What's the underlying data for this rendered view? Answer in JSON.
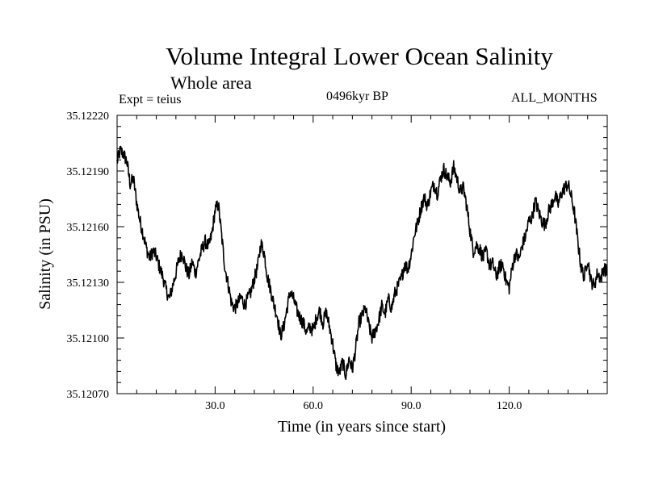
{
  "chart_data": {
    "type": "line",
    "title": "Volume Integral Lower Ocean Salinity",
    "subtitle": "Whole area",
    "annotations": {
      "left": "Expt = teius",
      "center": "0496kyr BP",
      "right": "ALL_MONTHS"
    },
    "xlabel": "Time (in years since start)",
    "ylabel": "Salinity (in PSU)",
    "xlim": [
      0,
      150
    ],
    "ylim": [
      35.1207,
      35.1222
    ],
    "xticks": [
      30,
      60,
      90,
      120
    ],
    "xtick_labels": [
      "30.0",
      "60.0",
      "90.0",
      "120.0"
    ],
    "yticks": [
      35.1207,
      35.121,
      35.1213,
      35.1216,
      35.1219,
      35.1222
    ],
    "ytick_labels": [
      "35.12070",
      "35.12100",
      "35.12130",
      "35.12160",
      "35.12190",
      "35.12220"
    ],
    "series": [
      {
        "name": "salinity",
        "x": [
          0,
          1,
          2,
          3,
          4,
          5,
          6,
          7,
          8,
          9,
          10,
          11,
          12,
          13,
          14,
          15,
          16,
          17,
          18,
          19,
          20,
          21,
          22,
          23,
          24,
          25,
          26,
          27,
          28,
          29,
          30,
          31,
          32,
          33,
          34,
          35,
          36,
          37,
          38,
          39,
          40,
          41,
          42,
          43,
          44,
          45,
          46,
          47,
          48,
          49,
          50,
          51,
          52,
          53,
          54,
          55,
          56,
          57,
          58,
          59,
          60,
          61,
          62,
          63,
          64,
          65,
          66,
          67,
          68,
          69,
          70,
          71,
          72,
          73,
          74,
          75,
          76,
          77,
          78,
          79,
          80,
          81,
          82,
          83,
          84,
          85,
          86,
          87,
          88,
          89,
          90,
          91,
          92,
          93,
          94,
          95,
          96,
          97,
          98,
          99,
          100,
          101,
          102,
          103,
          104,
          105,
          106,
          107,
          108,
          109,
          110,
          111,
          112,
          113,
          114,
          115,
          116,
          117,
          118,
          119,
          120,
          121,
          122,
          123,
          124,
          125,
          126,
          127,
          128,
          129,
          130,
          131,
          132,
          133,
          134,
          135,
          136,
          137,
          138,
          139,
          140,
          141,
          142,
          143,
          144,
          145,
          146,
          147,
          148,
          149,
          150
        ],
        "y": [
          35.12195,
          35.12201,
          35.12199,
          35.12195,
          35.12183,
          35.12186,
          35.12173,
          35.12163,
          35.12156,
          35.12148,
          35.12143,
          35.12147,
          35.12144,
          35.12138,
          35.12133,
          35.12126,
          35.12121,
          35.12128,
          35.12135,
          35.12143,
          35.12146,
          35.12138,
          35.12134,
          35.12141,
          35.12135,
          35.12142,
          35.12148,
          35.12152,
          35.12149,
          35.12156,
          35.12169,
          35.12172,
          35.12155,
          35.12138,
          35.12129,
          35.12119,
          35.12116,
          35.12119,
          35.12122,
          35.12118,
          35.12121,
          35.12125,
          35.12132,
          35.12138,
          35.12151,
          35.12146,
          35.12133,
          35.12126,
          35.12118,
          35.12112,
          35.12101,
          35.12106,
          35.12116,
          35.12125,
          35.12121,
          35.12115,
          35.12111,
          35.12108,
          35.12103,
          35.12106,
          35.12104,
          35.12111,
          35.12115,
          35.12108,
          35.12114,
          35.12106,
          35.12097,
          35.12085,
          35.12081,
          35.12087,
          35.1208,
          35.12089,
          35.12083,
          35.12094,
          35.12108,
          35.12112,
          35.12116,
          35.12107,
          35.121,
          35.12104,
          35.12109,
          35.12117,
          35.12113,
          35.12121,
          35.12116,
          35.12124,
          35.12128,
          35.12132,
          35.1214,
          35.12137,
          35.12145,
          35.12156,
          35.12162,
          35.1217,
          35.12176,
          35.12171,
          35.12179,
          35.12183,
          35.12178,
          35.12186,
          35.12191,
          35.12187,
          35.12184,
          35.12192,
          35.12186,
          35.12179,
          35.12181,
          35.12171,
          35.12158,
          35.12147,
          35.1215,
          35.12148,
          35.12143,
          35.12147,
          35.12139,
          35.1214,
          35.12133,
          35.12138,
          35.1214,
          35.12131,
          35.12127,
          35.12139,
          35.12146,
          35.12142,
          35.1215,
          35.12155,
          35.12163,
          35.12165,
          35.12174,
          35.12168,
          35.12163,
          35.12161,
          35.12168,
          35.12172,
          35.12177,
          35.12172,
          35.12178,
          35.12181,
          35.12183,
          35.12176,
          35.12167,
          35.12152,
          35.12138,
          35.12133,
          35.12143,
          35.12131,
          35.12128,
          35.12135,
          35.12132,
          35.12138,
          35.12135
        ]
      }
    ]
  }
}
